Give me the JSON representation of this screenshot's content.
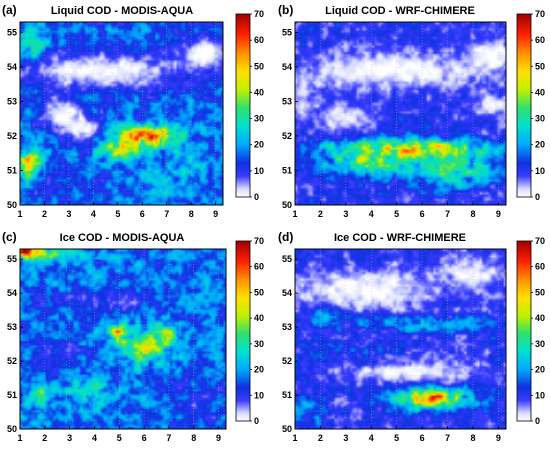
{
  "figure": {
    "colormap": [
      {
        "v": 0,
        "c": "#ffffff"
      },
      {
        "v": 3,
        "c": "#d8dcff"
      },
      {
        "v": 8,
        "c": "#3a3cff"
      },
      {
        "v": 13,
        "c": "#1030e0"
      },
      {
        "v": 20,
        "c": "#00a8ff"
      },
      {
        "v": 27,
        "c": "#00e0d0"
      },
      {
        "v": 34,
        "c": "#30e070"
      },
      {
        "v": 41,
        "c": "#c0f000"
      },
      {
        "v": 48,
        "c": "#ffe000"
      },
      {
        "v": 55,
        "c": "#ff9000"
      },
      {
        "v": 62,
        "c": "#ff2000"
      },
      {
        "v": 70,
        "c": "#a00000"
      }
    ]
  },
  "chart_data": [
    {
      "type": "heatmap",
      "panel_label": "(a)",
      "title": "Liquid COD - MODIS-AQUA",
      "xlim": [
        1,
        9.3
      ],
      "ylim": [
        50,
        55.3
      ],
      "x_ticks": [
        "1",
        "2",
        "3",
        "4",
        "5",
        "6",
        "7",
        "8",
        "9"
      ],
      "y_ticks": [
        "50",
        "51",
        "52",
        "53",
        "54",
        "55"
      ],
      "colorbar": {
        "range": [
          0,
          70
        ],
        "ticks": [
          "0",
          "10",
          "20",
          "30",
          "40",
          "50",
          "60",
          "70"
        ]
      },
      "field": {
        "background": 16,
        "features": [
          {
            "x": 4.2,
            "y": 53.9,
            "sx": 3.6,
            "sy": 0.55,
            "v": 0
          },
          {
            "x": 8.6,
            "y": 54.4,
            "sx": 1.2,
            "sy": 0.55,
            "v": 0
          },
          {
            "x": 2.7,
            "y": 52.6,
            "sx": 0.9,
            "sy": 0.5,
            "v": 0
          },
          {
            "x": 3.6,
            "y": 52.2,
            "sx": 0.7,
            "sy": 0.4,
            "v": 0
          },
          {
            "x": 1.6,
            "y": 54.7,
            "sx": 0.6,
            "sy": 0.5,
            "v": 25
          },
          {
            "x": 6.2,
            "y": 52.0,
            "sx": 1.3,
            "sy": 0.3,
            "v": 56
          },
          {
            "x": 5.2,
            "y": 51.6,
            "sx": 0.8,
            "sy": 0.25,
            "v": 44
          },
          {
            "x": 1.4,
            "y": 51.2,
            "sx": 0.5,
            "sy": 0.45,
            "v": 50
          },
          {
            "x": 7.5,
            "y": 51.0,
            "sx": 1.6,
            "sy": 0.8,
            "v": 20
          },
          {
            "x": 2.6,
            "y": 50.6,
            "sx": 1.2,
            "sy": 0.5,
            "v": 12
          }
        ]
      }
    },
    {
      "type": "heatmap",
      "panel_label": "(b)",
      "title": "Liquid COD - WRF-CHIMERE",
      "xlim": [
        1,
        9.3
      ],
      "ylim": [
        50,
        55.3
      ],
      "x_ticks": [
        "1",
        "2",
        "3",
        "4",
        "5",
        "6",
        "7",
        "8",
        "9"
      ],
      "y_ticks": [
        "50",
        "51",
        "52",
        "53",
        "54",
        "55"
      ],
      "colorbar": {
        "range": [
          0,
          70
        ],
        "ticks": [
          "0",
          "10",
          "20",
          "30",
          "40",
          "50",
          "60",
          "70"
        ]
      },
      "field": {
        "background": 10,
        "features": [
          {
            "x": 4.8,
            "y": 53.9,
            "sx": 3.8,
            "sy": 0.55,
            "v": 0
          },
          {
            "x": 8.7,
            "y": 54.3,
            "sx": 1.0,
            "sy": 0.5,
            "v": 0
          },
          {
            "x": 3.0,
            "y": 52.5,
            "sx": 1.2,
            "sy": 0.5,
            "v": 2
          },
          {
            "x": 1.3,
            "y": 53.0,
            "sx": 0.4,
            "sy": 0.6,
            "v": 2
          },
          {
            "x": 5.5,
            "y": 51.6,
            "sx": 2.8,
            "sy": 0.3,
            "v": 50
          },
          {
            "x": 4.0,
            "y": 51.2,
            "sx": 1.6,
            "sy": 0.35,
            "v": 38
          },
          {
            "x": 7.2,
            "y": 51.0,
            "sx": 1.6,
            "sy": 0.5,
            "v": 30
          },
          {
            "x": 8.8,
            "y": 52.9,
            "sx": 0.8,
            "sy": 0.3,
            "v": 2
          }
        ]
      }
    },
    {
      "type": "heatmap",
      "panel_label": "(c)",
      "title": "Ice COD - MODIS-AQUA",
      "xlim": [
        1,
        9.3
      ],
      "ylim": [
        50,
        55.3
      ],
      "x_ticks": [
        "1",
        "2",
        "3",
        "4",
        "5",
        "6",
        "7",
        "8",
        "9"
      ],
      "y_ticks": [
        "50",
        "51",
        "52",
        "53",
        "54",
        "55"
      ],
      "colorbar": {
        "range": [
          0,
          70
        ],
        "ticks": [
          "0",
          "10",
          "20",
          "30",
          "40",
          "50",
          "60",
          "70"
        ]
      },
      "field": {
        "background": 17,
        "features": [
          {
            "x": 2.0,
            "y": 55.2,
            "sx": 1.4,
            "sy": 0.2,
            "v": 40
          },
          {
            "x": 1.2,
            "y": 55.2,
            "sx": 0.3,
            "sy": 0.2,
            "v": 62
          },
          {
            "x": 6.0,
            "y": 52.4,
            "sx": 1.0,
            "sy": 0.45,
            "v": 40
          },
          {
            "x": 5.0,
            "y": 52.8,
            "sx": 0.4,
            "sy": 0.25,
            "v": 48
          },
          {
            "x": 6.8,
            "y": 52.8,
            "sx": 0.5,
            "sy": 0.25,
            "v": 36
          },
          {
            "x": 1.8,
            "y": 51.0,
            "sx": 0.6,
            "sy": 0.45,
            "v": 30
          },
          {
            "x": 4.0,
            "y": 53.8,
            "sx": 2.8,
            "sy": 0.35,
            "v": 9
          },
          {
            "x": 2.5,
            "y": 52.2,
            "sx": 1.2,
            "sy": 0.6,
            "v": 11
          },
          {
            "x": 8.3,
            "y": 50.8,
            "sx": 1.2,
            "sy": 0.8,
            "v": 11
          },
          {
            "x": 3.8,
            "y": 51.2,
            "sx": 0.8,
            "sy": 0.6,
            "v": 25
          }
        ]
      }
    },
    {
      "type": "heatmap",
      "panel_label": "(d)",
      "title": "Ice COD - WRF-CHIMERE",
      "xlim": [
        1,
        9.3
      ],
      "ylim": [
        50,
        55.3
      ],
      "x_ticks": [
        "1",
        "2",
        "3",
        "4",
        "5",
        "6",
        "7",
        "8",
        "9"
      ],
      "y_ticks": [
        "50",
        "51",
        "52",
        "53",
        "54",
        "55"
      ],
      "colorbar": {
        "range": [
          0,
          70
        ],
        "ticks": [
          "0",
          "10",
          "20",
          "30",
          "40",
          "50",
          "60",
          "70"
        ]
      },
      "field": {
        "background": 10,
        "features": [
          {
            "x": 3.8,
            "y": 54.1,
            "sx": 2.8,
            "sy": 0.6,
            "v": 0
          },
          {
            "x": 8.0,
            "y": 54.6,
            "sx": 1.4,
            "sy": 0.5,
            "v": 2
          },
          {
            "x": 5.5,
            "y": 51.7,
            "sx": 2.8,
            "sy": 0.35,
            "v": 1
          },
          {
            "x": 6.3,
            "y": 53.1,
            "sx": 2.8,
            "sy": 0.22,
            "v": 22
          },
          {
            "x": 6.4,
            "y": 50.9,
            "sx": 1.4,
            "sy": 0.3,
            "v": 50
          },
          {
            "x": 3.2,
            "y": 52.3,
            "sx": 1.6,
            "sy": 0.4,
            "v": 14
          },
          {
            "x": 2.0,
            "y": 53.3,
            "sx": 0.9,
            "sy": 0.25,
            "v": 18
          },
          {
            "x": 1.5,
            "y": 50.5,
            "sx": 0.7,
            "sy": 0.4,
            "v": 18
          }
        ]
      }
    }
  ]
}
